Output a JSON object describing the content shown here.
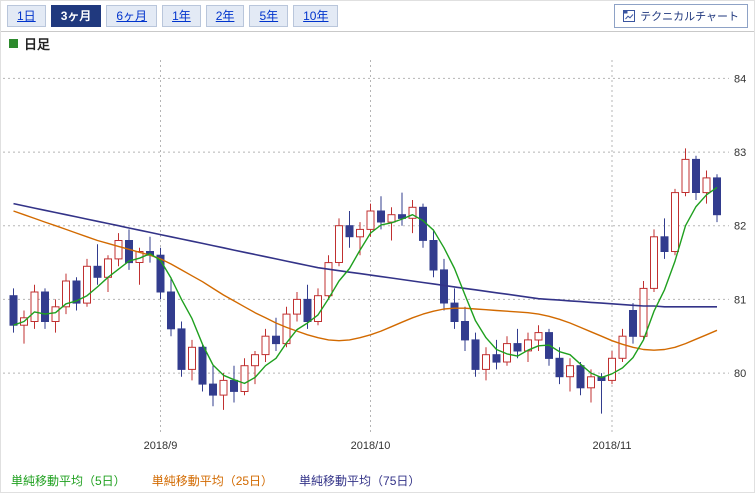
{
  "toolbar": {
    "tabs": [
      {
        "label": "1日",
        "selected": false
      },
      {
        "label": "3ヶ月",
        "selected": true
      },
      {
        "label": "6ヶ月",
        "selected": false
      },
      {
        "label": "1年",
        "selected": false
      },
      {
        "label": "2年",
        "selected": false
      },
      {
        "label": "5年",
        "selected": false
      },
      {
        "label": "10年",
        "selected": false
      }
    ],
    "technical_chart_button": "テクニカルチャート"
  },
  "subtitle": {
    "label": "日足",
    "marker_color": "#2d8a2d"
  },
  "legend": [
    {
      "label": "単純移動平均（5日）",
      "color": "#1fa01f"
    },
    {
      "label": "単純移動平均（25日）",
      "color": "#d26a00"
    },
    {
      "label": "単純移動平均（75日）",
      "color": "#333388"
    }
  ],
  "chart_data": {
    "type": "candlestick",
    "title": "日足",
    "ylim": [
      79.2,
      84.25
    ],
    "y_ticks": [
      80,
      81,
      82,
      83,
      84
    ],
    "x_ticks": [
      {
        "index": 14,
        "label": "2018/9"
      },
      {
        "index": 34,
        "label": "2018/10"
      },
      {
        "index": 57,
        "label": "2018/11"
      }
    ],
    "grid_color": "#b5b5b5",
    "up_color": "#c03030",
    "up_fill": "#ffffff",
    "down_color": "#323c8e",
    "axis_text_color": "#333333",
    "candles": [
      [
        81.05,
        81.15,
        80.55,
        80.65
      ],
      [
        80.65,
        80.85,
        80.4,
        80.75
      ],
      [
        80.7,
        81.2,
        80.6,
        81.1
      ],
      [
        81.1,
        81.15,
        80.6,
        80.7
      ],
      [
        80.7,
        81.0,
        80.55,
        80.9
      ],
      [
        80.9,
        81.35,
        80.8,
        81.25
      ],
      [
        81.25,
        81.3,
        80.85,
        80.95
      ],
      [
        80.95,
        81.55,
        80.9,
        81.45
      ],
      [
        81.45,
        81.75,
        81.2,
        81.3
      ],
      [
        81.3,
        81.6,
        81.1,
        81.55
      ],
      [
        81.55,
        81.9,
        81.45,
        81.8
      ],
      [
        81.8,
        81.95,
        81.4,
        81.5
      ],
      [
        81.5,
        81.7,
        81.2,
        81.65
      ],
      [
        81.65,
        81.85,
        81.5,
        81.6
      ],
      [
        81.6,
        81.7,
        81.0,
        81.1
      ],
      [
        81.1,
        81.3,
        80.5,
        80.6
      ],
      [
        80.6,
        80.7,
        79.95,
        80.05
      ],
      [
        80.05,
        80.45,
        79.9,
        80.35
      ],
      [
        80.35,
        80.4,
        79.75,
        79.85
      ],
      [
        79.85,
        80.1,
        79.55,
        79.7
      ],
      [
        79.7,
        80.0,
        79.5,
        79.9
      ],
      [
        79.9,
        80.1,
        79.6,
        79.75
      ],
      [
        79.75,
        80.2,
        79.7,
        80.1
      ],
      [
        80.1,
        80.3,
        79.85,
        80.25
      ],
      [
        80.25,
        80.6,
        80.15,
        80.5
      ],
      [
        80.5,
        80.75,
        80.3,
        80.4
      ],
      [
        80.4,
        80.9,
        80.35,
        80.8
      ],
      [
        80.8,
        81.1,
        80.7,
        81.0
      ],
      [
        81.0,
        81.2,
        80.6,
        80.7
      ],
      [
        80.7,
        81.15,
        80.65,
        81.05
      ],
      [
        81.05,
        81.6,
        81.0,
        81.5
      ],
      [
        81.5,
        82.1,
        81.45,
        82.0
      ],
      [
        82.0,
        82.2,
        81.7,
        81.85
      ],
      [
        81.85,
        82.05,
        81.6,
        81.95
      ],
      [
        81.95,
        82.3,
        81.85,
        82.2
      ],
      [
        82.2,
        82.4,
        81.95,
        82.05
      ],
      [
        82.05,
        82.25,
        81.8,
        82.15
      ],
      [
        82.15,
        82.45,
        82.0,
        82.1
      ],
      [
        82.1,
        82.35,
        81.9,
        82.25
      ],
      [
        82.25,
        82.3,
        81.7,
        81.8
      ],
      [
        81.8,
        81.95,
        81.3,
        81.4
      ],
      [
        81.4,
        81.55,
        80.85,
        80.95
      ],
      [
        80.95,
        81.15,
        80.6,
        80.7
      ],
      [
        80.7,
        80.9,
        80.3,
        80.45
      ],
      [
        80.45,
        80.55,
        79.95,
        80.05
      ],
      [
        80.05,
        80.35,
        79.9,
        80.25
      ],
      [
        80.25,
        80.45,
        80.05,
        80.15
      ],
      [
        80.15,
        80.5,
        80.1,
        80.4
      ],
      [
        80.4,
        80.6,
        80.2,
        80.3
      ],
      [
        80.3,
        80.55,
        80.15,
        80.45
      ],
      [
        80.45,
        80.65,
        80.3,
        80.55
      ],
      [
        80.55,
        80.6,
        80.1,
        80.2
      ],
      [
        80.2,
        80.35,
        79.85,
        79.95
      ],
      [
        79.95,
        80.2,
        79.75,
        80.1
      ],
      [
        80.1,
        80.15,
        79.7,
        79.8
      ],
      [
        79.8,
        80.05,
        79.6,
        79.95
      ],
      [
        79.95,
        80.0,
        79.45,
        79.9
      ],
      [
        79.9,
        80.3,
        79.85,
        80.2
      ],
      [
        80.2,
        80.6,
        80.15,
        80.5
      ],
      [
        80.85,
        80.95,
        80.4,
        80.5
      ],
      [
        80.5,
        81.25,
        80.45,
        81.15
      ],
      [
        81.15,
        81.95,
        81.1,
        81.85
      ],
      [
        81.85,
        82.1,
        81.55,
        81.65
      ],
      [
        81.65,
        82.5,
        81.6,
        82.45
      ],
      [
        82.45,
        83.05,
        82.4,
        82.9
      ],
      [
        82.9,
        82.95,
        82.35,
        82.45
      ],
      [
        82.45,
        82.75,
        82.3,
        82.65
      ],
      [
        82.65,
        82.7,
        82.05,
        82.15
      ]
    ],
    "series": [
      {
        "name": "単純移動平均（5日）",
        "color": "#1fa01f",
        "width": 1.4,
        "values": [
          80.65,
          80.7,
          80.83,
          80.8,
          80.82,
          80.94,
          80.98,
          81.05,
          81.17,
          81.3,
          81.41,
          81.52,
          81.56,
          81.62,
          81.53,
          81.29,
          81.0,
          80.74,
          80.39,
          80.11,
          79.97,
          79.91,
          79.86,
          79.94,
          80.1,
          80.2,
          80.41,
          80.59,
          80.68,
          80.79,
          81.01,
          81.25,
          81.42,
          81.67,
          81.9,
          82.01,
          82.04,
          82.09,
          82.15,
          82.07,
          81.94,
          81.7,
          81.42,
          81.06,
          80.71,
          80.48,
          80.32,
          80.26,
          80.23,
          80.31,
          80.37,
          80.38,
          80.29,
          80.25,
          80.12,
          80.0,
          79.94,
          79.99,
          80.07,
          80.21,
          80.45,
          80.84,
          81.13,
          81.52,
          82.0,
          82.26,
          82.42,
          82.52
        ]
      },
      {
        "name": "単純移動平均（25日）",
        "color": "#d26a00",
        "width": 1.4,
        "values": [
          82.2,
          82.15,
          82.1,
          82.05,
          82.0,
          81.95,
          81.9,
          81.85,
          81.8,
          81.76,
          81.72,
          81.68,
          81.64,
          81.6,
          81.55,
          81.48,
          81.4,
          81.32,
          81.24,
          81.15,
          81.06,
          80.98,
          80.9,
          80.82,
          80.75,
          80.68,
          80.62,
          80.57,
          80.52,
          80.48,
          80.45,
          80.44,
          80.45,
          80.48,
          80.52,
          80.57,
          80.63,
          80.69,
          80.75,
          80.8,
          80.84,
          80.87,
          80.88,
          80.88,
          80.87,
          80.86,
          80.85,
          80.84,
          80.83,
          80.82,
          80.8,
          80.77,
          80.73,
          80.68,
          80.62,
          80.56,
          80.5,
          80.44,
          80.39,
          80.35,
          80.32,
          80.31,
          80.32,
          80.35,
          80.4,
          80.46,
          80.52,
          80.58
        ]
      },
      {
        "name": "単純移動平均（75日）",
        "color": "#333388",
        "width": 1.6,
        "values": [
          82.3,
          82.27,
          82.24,
          82.21,
          82.18,
          82.15,
          82.12,
          82.09,
          82.06,
          82.03,
          82.0,
          81.97,
          81.94,
          81.91,
          81.88,
          81.85,
          81.82,
          81.79,
          81.76,
          81.73,
          81.7,
          81.67,
          81.64,
          81.61,
          81.58,
          81.55,
          81.52,
          81.49,
          81.46,
          81.43,
          81.41,
          81.39,
          81.37,
          81.35,
          81.33,
          81.31,
          81.29,
          81.27,
          81.25,
          81.23,
          81.21,
          81.19,
          81.17,
          81.15,
          81.13,
          81.11,
          81.09,
          81.07,
          81.05,
          81.03,
          81.01,
          81.0,
          80.99,
          80.98,
          80.97,
          80.96,
          80.95,
          80.94,
          80.93,
          80.92,
          80.91,
          80.91,
          80.9,
          80.9,
          80.9,
          80.9,
          80.9,
          80.9
        ]
      }
    ]
  }
}
